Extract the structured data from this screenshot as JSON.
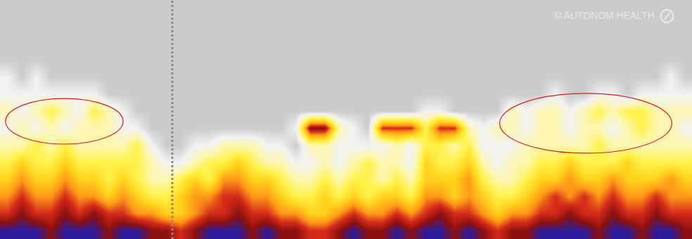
{
  "chart_data": {
    "type": "heatmap",
    "annotations": [
      "© AUTONOM HEALTH"
    ],
    "grid": false,
    "tick_labels": false,
    "zlim": [
      0,
      8
    ],
    "z": [
      [
        8,
        8,
        8,
        7,
        8,
        8,
        8,
        7,
        8,
        8,
        7,
        7,
        6,
        7,
        8,
        8,
        8,
        7,
        8,
        7,
        7,
        6,
        6,
        7,
        8,
        7,
        7,
        8,
        7,
        8,
        8,
        7,
        8,
        7,
        6,
        7,
        7,
        8,
        8,
        8,
        8,
        7,
        8,
        8,
        7,
        8,
        8,
        7
      ],
      [
        6,
        7,
        6,
        6,
        7,
        6,
        7,
        6,
        6,
        5,
        5,
        4,
        4,
        5,
        6,
        6,
        7,
        6,
        6,
        5,
        5,
        4,
        4,
        5,
        6,
        5,
        5,
        6,
        5,
        6,
        7,
        6,
        6,
        5,
        4,
        5,
        5,
        6,
        6,
        7,
        6,
        6,
        7,
        6,
        6,
        7,
        6,
        6
      ],
      [
        5,
        6,
        5,
        5,
        6,
        5,
        5,
        4,
        5,
        4,
        3,
        3,
        4,
        5,
        5,
        6,
        6,
        5,
        5,
        4,
        3,
        3,
        4,
        3,
        4,
        3,
        4,
        4,
        3,
        5,
        5,
        4,
        5,
        4,
        3,
        3,
        4,
        5,
        6,
        5,
        6,
        5,
        6,
        5,
        5,
        6,
        5,
        5
      ],
      [
        4,
        5,
        4,
        4,
        5,
        4,
        4,
        3,
        4,
        3,
        2,
        2,
        3,
        4,
        3,
        5,
        5,
        4,
        4,
        3,
        2,
        2,
        3,
        2,
        3,
        3,
        2,
        3,
        2,
        4,
        4,
        4,
        5,
        3,
        2,
        2,
        3,
        4,
        4,
        5,
        4,
        4,
        5,
        4,
        4,
        4,
        5,
        4
      ],
      [
        3,
        4,
        3,
        3,
        4,
        3,
        3,
        3,
        3,
        3,
        2,
        1,
        1,
        2,
        3,
        3,
        4,
        3,
        2,
        2,
        1,
        1,
        2,
        1,
        2,
        3,
        2,
        2,
        1,
        4,
        3,
        3,
        4,
        2,
        1,
        2,
        2,
        3,
        3,
        4,
        3,
        3,
        3,
        4,
        3,
        3,
        3,
        3
      ],
      [
        2,
        2,
        3,
        2,
        3,
        2,
        2,
        2,
        2,
        3,
        1,
        0,
        0,
        1,
        1,
        2,
        2,
        2,
        1,
        1,
        0,
        2,
        2,
        1,
        1,
        1,
        1,
        2,
        1,
        3,
        3,
        2,
        3,
        1,
        1,
        1,
        2,
        2,
        2,
        2,
        2,
        3,
        2,
        2,
        2,
        2,
        2,
        2
      ],
      [
        1,
        2,
        1,
        2,
        1,
        2,
        2,
        2,
        1,
        1,
        0,
        0,
        0,
        0,
        0,
        0,
        0,
        0,
        0,
        0,
        1,
        7,
        7,
        2,
        1,
        0,
        6,
        6,
        6,
        3,
        6,
        6,
        2,
        1,
        2,
        2,
        1,
        2,
        2,
        1,
        2,
        2,
        1,
        2,
        3,
        2,
        2,
        1
      ],
      [
        2,
        1,
        2,
        3,
        2,
        1,
        3,
        2,
        1,
        0,
        0,
        0,
        0,
        0,
        0,
        0,
        0,
        0,
        0,
        0,
        0,
        0,
        0,
        0,
        0,
        0,
        0,
        0,
        0,
        1,
        1,
        0,
        0,
        0,
        0,
        2,
        1,
        2,
        2,
        1,
        2,
        3,
        2,
        3,
        3,
        2,
        2,
        2
      ],
      [
        1,
        1,
        1,
        1,
        1,
        1,
        1,
        0,
        0,
        0,
        0,
        0,
        0,
        0,
        0,
        0,
        0,
        0,
        0,
        0,
        0,
        0,
        0,
        0,
        0,
        0,
        0,
        0,
        0,
        0,
        0,
        0,
        0,
        0,
        0,
        0,
        0,
        0,
        1,
        0,
        0,
        1,
        1,
        0,
        1,
        1,
        1,
        1
      ],
      [
        1,
        0,
        1,
        0,
        0,
        0,
        0,
        0,
        0,
        0,
        0,
        0,
        0,
        0,
        0,
        0,
        0,
        0,
        0,
        0,
        0,
        0,
        0,
        0,
        0,
        0,
        0,
        0,
        0,
        0,
        0,
        0,
        0,
        0,
        0,
        0,
        0,
        0,
        0,
        0,
        0,
        0,
        0,
        0,
        0,
        0,
        1,
        0
      ],
      [
        0,
        0,
        0,
        0,
        0,
        0,
        0,
        0,
        0,
        0,
        0,
        0,
        0,
        0,
        0,
        0,
        0,
        0,
        0,
        0,
        0,
        0,
        0,
        0,
        0,
        0,
        0,
        0,
        0,
        0,
        0,
        0,
        0,
        0,
        0,
        0,
        0,
        0,
        0,
        0,
        0,
        0,
        0,
        0,
        0,
        0,
        0,
        0
      ],
      [
        0,
        0,
        0,
        0,
        0,
        0,
        0,
        0,
        0,
        0,
        0,
        0,
        0,
        0,
        0,
        0,
        0,
        0,
        0,
        0,
        0,
        0,
        0,
        0,
        0,
        0,
        0,
        0,
        0,
        0,
        0,
        0,
        0,
        0,
        0,
        0,
        0,
        0,
        0,
        0,
        0,
        0,
        0,
        0,
        0,
        0,
        0,
        0
      ],
      [
        0,
        0,
        0,
        0,
        0,
        0,
        0,
        0,
        0,
        0,
        0,
        0,
        0,
        0,
        0,
        0,
        0,
        0,
        0,
        0,
        0,
        0,
        0,
        0,
        0,
        0,
        0,
        0,
        0,
        0,
        0,
        0,
        0,
        0,
        0,
        0,
        0,
        0,
        0,
        0,
        0,
        0,
        0,
        0,
        0,
        0,
        0,
        0
      ],
      [
        0,
        0,
        0,
        0,
        0,
        0,
        0,
        0,
        0,
        0,
        0,
        0,
        0,
        0,
        0,
        0,
        0,
        0,
        0,
        0,
        0,
        0,
        0,
        0,
        0,
        0,
        0,
        0,
        0,
        0,
        0,
        0,
        0,
        0,
        0,
        0,
        0,
        0,
        0,
        0,
        0,
        0,
        0,
        0,
        0,
        0,
        0,
        0
      ]
    ]
  }
}
